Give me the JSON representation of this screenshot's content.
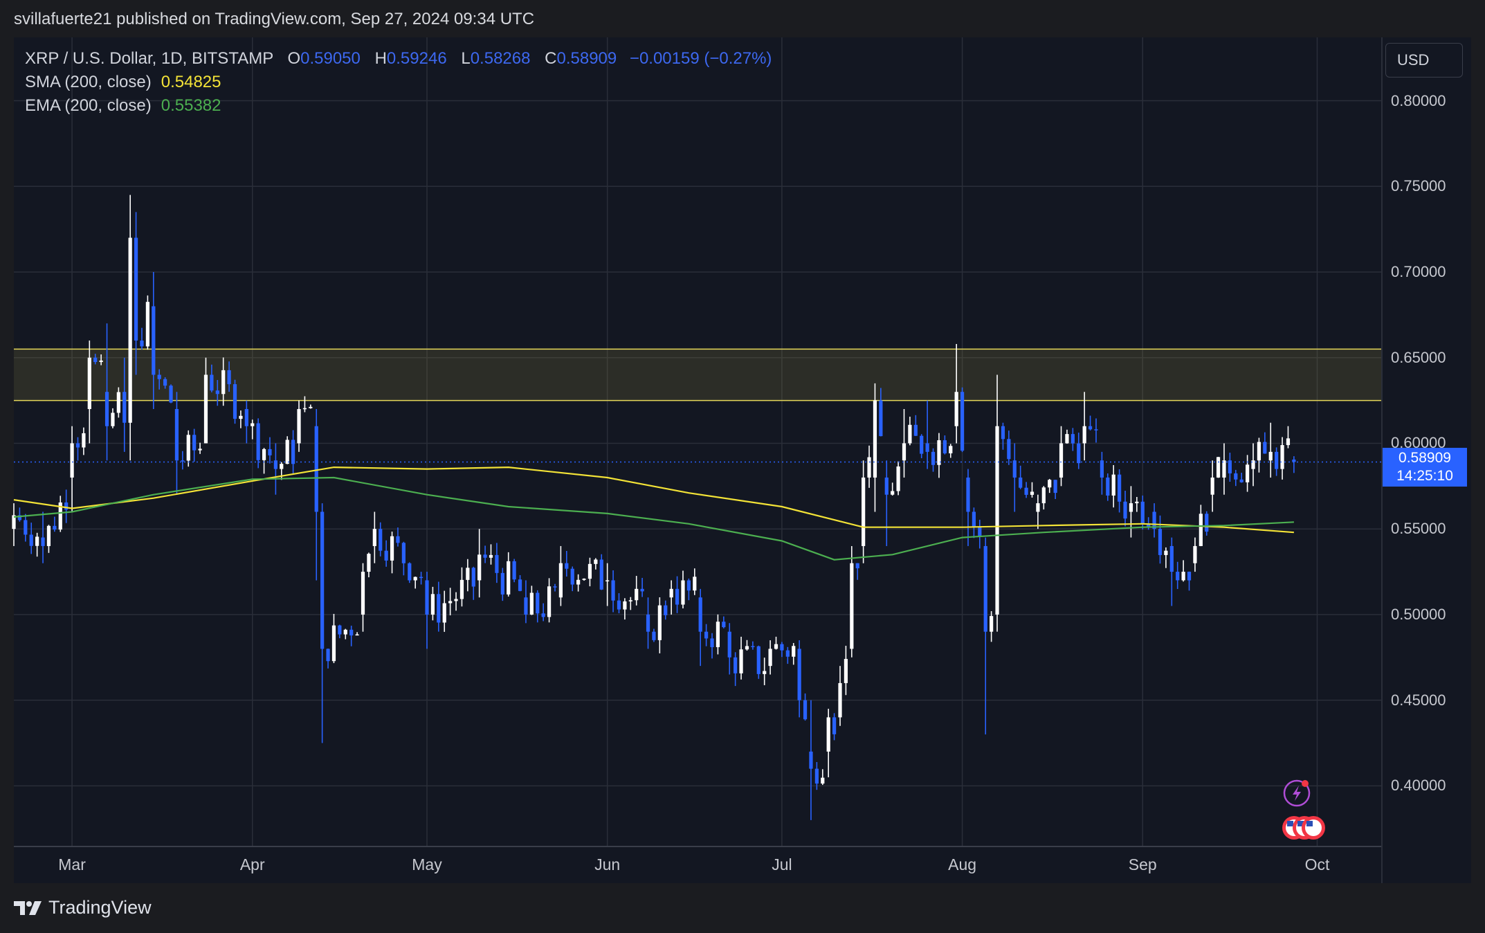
{
  "header": {
    "publisher_line": "svillafuerte21 published on TradingView.com, Sep 27, 2024 09:34 UTC"
  },
  "legend": {
    "symbol": "XRP / U.S. Dollar, 1D, BITSTAMP",
    "open_label": "O",
    "open": "0.59050",
    "high_label": "H",
    "high": "0.59246",
    "low_label": "L",
    "low": "0.58268",
    "close_label": "C",
    "close": "0.58909",
    "change": "−0.00159 (−0.27%)",
    "sma_label": "SMA (200, close)",
    "sma_value": "0.54825",
    "ema_label": "EMA (200, close)",
    "ema_value": "0.55382"
  },
  "price_scale": {
    "currency": "USD",
    "ticks": [
      "0.80000",
      "0.75000",
      "0.70000",
      "0.65000",
      "0.60000",
      "0.55000",
      "0.50000",
      "0.45000",
      "0.40000"
    ],
    "current_price": "0.58909",
    "countdown": "14:25:10"
  },
  "time_axis": {
    "labels": [
      "Mar",
      "Apr",
      "May",
      "Jun",
      "Jul",
      "Aug",
      "Sep",
      "Oct"
    ]
  },
  "footer": {
    "brand": "TradingView"
  },
  "colors": {
    "up": "#ffffff",
    "down": "#2962ff",
    "sma": "#f3e337",
    "ema": "#4caf50",
    "zone": "#e7d85a",
    "background": "#131722"
  },
  "chart_data": {
    "type": "candlestick",
    "title": "XRP / U.S. Dollar, 1D, BITSTAMP",
    "ylim": [
      0.365,
      0.837
    ],
    "grid": true,
    "yticks": [
      0.4,
      0.45,
      0.5,
      0.55,
      0.6,
      0.65,
      0.7,
      0.75,
      0.8
    ],
    "resistance_zone": [
      0.625,
      0.655
    ],
    "current_price": 0.58909,
    "x_range": [
      "2024-02-20",
      "2024-10-12"
    ],
    "anchors": [
      {
        "date": "2024-02-20",
        "open": 0.55,
        "high": 0.565,
        "low": 0.54,
        "close": 0.558
      },
      {
        "date": "2024-02-25",
        "open": 0.545,
        "high": 0.56,
        "low": 0.53,
        "close": 0.54
      },
      {
        "date": "2024-03-01",
        "open": 0.58,
        "high": 0.61,
        "low": 0.56,
        "close": 0.6
      },
      {
        "date": "2024-03-04",
        "open": 0.62,
        "high": 0.66,
        "low": 0.6,
        "close": 0.65
      },
      {
        "date": "2024-03-07",
        "open": 0.63,
        "high": 0.67,
        "low": 0.59,
        "close": 0.61
      },
      {
        "date": "2024-03-10",
        "open": 0.63,
        "high": 0.65,
        "low": 0.595,
        "close": 0.612
      },
      {
        "date": "2024-03-11",
        "open": 0.612,
        "high": 0.745,
        "low": 0.59,
        "close": 0.72
      },
      {
        "date": "2024-03-12",
        "open": 0.72,
        "high": 0.735,
        "low": 0.64,
        "close": 0.66
      },
      {
        "date": "2024-03-15",
        "open": 0.68,
        "high": 0.7,
        "low": 0.62,
        "close": 0.64
      },
      {
        "date": "2024-03-19",
        "open": 0.62,
        "high": 0.63,
        "low": 0.57,
        "close": 0.59
      },
      {
        "date": "2024-03-24",
        "open": 0.6,
        "high": 0.65,
        "low": 0.6,
        "close": 0.64
      },
      {
        "date": "2024-03-31",
        "open": 0.62,
        "high": 0.625,
        "low": 0.6,
        "close": 0.61
      },
      {
        "date": "2024-04-05",
        "open": 0.59,
        "high": 0.6,
        "low": 0.57,
        "close": 0.585
      },
      {
        "date": "2024-04-09",
        "open": 0.6,
        "high": 0.625,
        "low": 0.595,
        "close": 0.62
      },
      {
        "date": "2024-04-12",
        "open": 0.61,
        "high": 0.62,
        "low": 0.52,
        "close": 0.56
      },
      {
        "date": "2024-04-13",
        "open": 0.56,
        "high": 0.565,
        "low": 0.425,
        "close": 0.48
      },
      {
        "date": "2024-04-20",
        "open": 0.5,
        "high": 0.53,
        "low": 0.49,
        "close": 0.525
      },
      {
        "date": "2024-04-22",
        "open": 0.54,
        "high": 0.56,
        "low": 0.53,
        "close": 0.55
      },
      {
        "date": "2024-05-01",
        "open": 0.52,
        "high": 0.525,
        "low": 0.48,
        "close": 0.5
      },
      {
        "date": "2024-05-10",
        "open": 0.52,
        "high": 0.55,
        "low": 0.51,
        "close": 0.535
      },
      {
        "date": "2024-05-18",
        "open": 0.51,
        "high": 0.52,
        "low": 0.495,
        "close": 0.5
      },
      {
        "date": "2024-05-24",
        "open": 0.51,
        "high": 0.54,
        "low": 0.505,
        "close": 0.53
      },
      {
        "date": "2024-06-01",
        "open": 0.52,
        "high": 0.53,
        "low": 0.505,
        "close": 0.52
      },
      {
        "date": "2024-06-08",
        "open": 0.5,
        "high": 0.51,
        "low": 0.48,
        "close": 0.49
      },
      {
        "date": "2024-06-12",
        "open": 0.51,
        "high": 0.52,
        "low": 0.5,
        "close": 0.515
      },
      {
        "date": "2024-06-17",
        "open": 0.51,
        "high": 0.515,
        "low": 0.47,
        "close": 0.49
      },
      {
        "date": "2024-06-22",
        "open": 0.49,
        "high": 0.495,
        "low": 0.465,
        "close": 0.475
      },
      {
        "date": "2024-06-29",
        "open": 0.47,
        "high": 0.485,
        "low": 0.465,
        "close": 0.48
      },
      {
        "date": "2024-07-04",
        "open": 0.48,
        "high": 0.485,
        "low": 0.44,
        "close": 0.45
      },
      {
        "date": "2024-07-06",
        "open": 0.42,
        "high": 0.45,
        "low": 0.38,
        "close": 0.41
      },
      {
        "date": "2024-07-09",
        "open": 0.42,
        "high": 0.445,
        "low": 0.405,
        "close": 0.44
      },
      {
        "date": "2024-07-11",
        "open": 0.44,
        "high": 0.47,
        "low": 0.435,
        "close": 0.46
      },
      {
        "date": "2024-07-13",
        "open": 0.48,
        "high": 0.54,
        "low": 0.475,
        "close": 0.53
      },
      {
        "date": "2024-07-15",
        "open": 0.54,
        "high": 0.59,
        "low": 0.53,
        "close": 0.58
      },
      {
        "date": "2024-07-17",
        "open": 0.58,
        "high": 0.635,
        "low": 0.56,
        "close": 0.625
      },
      {
        "date": "2024-07-19",
        "open": 0.58,
        "high": 0.59,
        "low": 0.54,
        "close": 0.57
      },
      {
        "date": "2024-07-22",
        "open": 0.59,
        "high": 0.62,
        "low": 0.58,
        "close": 0.6
      },
      {
        "date": "2024-07-26",
        "open": 0.6,
        "high": 0.625,
        "low": 0.585,
        "close": 0.595
      },
      {
        "date": "2024-07-31",
        "open": 0.61,
        "high": 0.658,
        "low": 0.6,
        "close": 0.63
      },
      {
        "date": "2024-08-02",
        "open": 0.58,
        "high": 0.585,
        "low": 0.54,
        "close": 0.56
      },
      {
        "date": "2024-08-05",
        "open": 0.54,
        "high": 0.545,
        "low": 0.43,
        "close": 0.49
      },
      {
        "date": "2024-08-07",
        "open": 0.5,
        "high": 0.64,
        "low": 0.49,
        "close": 0.61
      },
      {
        "date": "2024-08-10",
        "open": 0.59,
        "high": 0.6,
        "low": 0.56,
        "close": 0.58
      },
      {
        "date": "2024-08-14",
        "open": 0.56,
        "high": 0.57,
        "low": 0.55,
        "close": 0.565
      },
      {
        "date": "2024-08-18",
        "open": 0.58,
        "high": 0.61,
        "low": 0.575,
        "close": 0.6
      },
      {
        "date": "2024-08-22",
        "open": 0.6,
        "high": 0.63,
        "low": 0.59,
        "close": 0.61
      },
      {
        "date": "2024-08-25",
        "open": 0.59,
        "high": 0.595,
        "low": 0.57,
        "close": 0.58
      },
      {
        "date": "2024-08-30",
        "open": 0.56,
        "high": 0.575,
        "low": 0.545,
        "close": 0.565
      },
      {
        "date": "2024-09-03",
        "open": 0.56,
        "high": 0.565,
        "low": 0.545,
        "close": 0.55
      },
      {
        "date": "2024-09-06",
        "open": 0.54,
        "high": 0.545,
        "low": 0.505,
        "close": 0.525
      },
      {
        "date": "2024-09-10",
        "open": 0.53,
        "high": 0.545,
        "low": 0.525,
        "close": 0.54
      },
      {
        "date": "2024-09-13",
        "open": 0.57,
        "high": 0.59,
        "low": 0.56,
        "close": 0.58
      },
      {
        "date": "2024-09-15",
        "open": 0.58,
        "high": 0.6,
        "low": 0.57,
        "close": 0.59
      },
      {
        "date": "2024-09-20",
        "open": 0.585,
        "high": 0.6,
        "low": 0.575,
        "close": 0.59
      },
      {
        "date": "2024-09-23",
        "open": 0.59,
        "high": 0.612,
        "low": 0.58,
        "close": 0.595
      },
      {
        "date": "2024-09-27",
        "open": 0.5905,
        "high": 0.59246,
        "low": 0.58268,
        "close": 0.58909
      }
    ],
    "series": [
      {
        "name": "SMA (200, close)",
        "color": "#f3e337",
        "points": [
          [
            "2024-02-20",
            0.567
          ],
          [
            "2024-03-01",
            0.562
          ],
          [
            "2024-03-15",
            0.568
          ],
          [
            "2024-04-01",
            0.578
          ],
          [
            "2024-04-15",
            0.586
          ],
          [
            "2024-05-01",
            0.585
          ],
          [
            "2024-05-15",
            0.586
          ],
          [
            "2024-06-01",
            0.58
          ],
          [
            "2024-06-15",
            0.571
          ],
          [
            "2024-07-01",
            0.563
          ],
          [
            "2024-07-15",
            0.551
          ],
          [
            "2024-08-01",
            0.551
          ],
          [
            "2024-08-15",
            0.552
          ],
          [
            "2024-09-01",
            0.553
          ],
          [
            "2024-09-15",
            0.551
          ],
          [
            "2024-09-27",
            0.548
          ]
        ]
      },
      {
        "name": "EMA (200, close)",
        "color": "#4caf50",
        "points": [
          [
            "2024-02-20",
            0.557
          ],
          [
            "2024-03-01",
            0.56
          ],
          [
            "2024-03-15",
            0.57
          ],
          [
            "2024-04-01",
            0.579
          ],
          [
            "2024-04-15",
            0.58
          ],
          [
            "2024-05-01",
            0.57
          ],
          [
            "2024-05-15",
            0.563
          ],
          [
            "2024-06-01",
            0.559
          ],
          [
            "2024-06-15",
            0.553
          ],
          [
            "2024-07-01",
            0.543
          ],
          [
            "2024-07-10",
            0.532
          ],
          [
            "2024-07-20",
            0.535
          ],
          [
            "2024-08-01",
            0.545
          ],
          [
            "2024-08-15",
            0.548
          ],
          [
            "2024-09-01",
            0.551
          ],
          [
            "2024-09-15",
            0.552
          ],
          [
            "2024-09-27",
            0.554
          ]
        ]
      }
    ]
  }
}
